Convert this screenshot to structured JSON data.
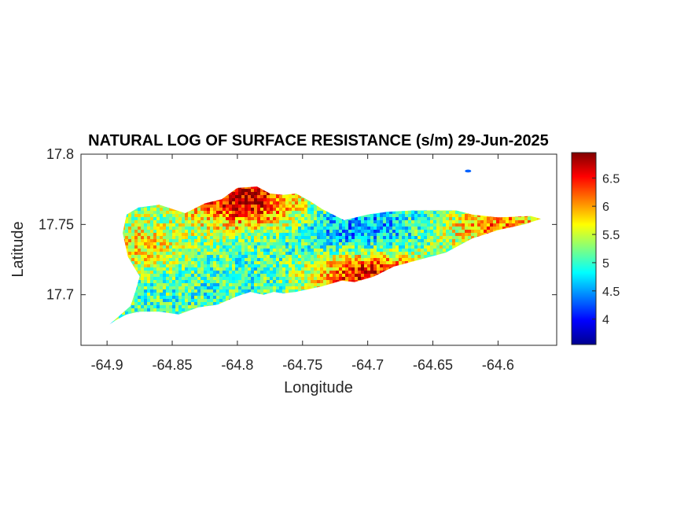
{
  "chart_data": {
    "type": "heatmap",
    "title": "NATURAL LOG OF SURFACE RESISTANCE (s/m) 29-Jun-2025",
    "xlabel": "Longitude",
    "ylabel": "Latitude",
    "xlim": [
      -64.92,
      -64.555
    ],
    "ylim": [
      17.664,
      17.8
    ],
    "x_ticks": [
      -64.9,
      -64.85,
      -64.8,
      -64.75,
      -64.7,
      -64.65,
      -64.6
    ],
    "x_tick_labels": [
      "-64.9",
      "-64.85",
      "-64.8",
      "-64.75",
      "-64.7",
      "-64.65",
      "-64.6"
    ],
    "y_ticks": [
      17.7,
      17.75,
      17.8
    ],
    "y_tick_labels": [
      "17.7",
      "17.75",
      "17.8"
    ],
    "colorbar": {
      "colormap": "jet",
      "range": [
        3.55,
        6.95
      ],
      "ticks": [
        4,
        4.5,
        5,
        5.5,
        6,
        6.5
      ],
      "tick_labels": [
        "4",
        "4.5",
        "5",
        "5.5",
        "6",
        "6.5"
      ]
    },
    "island_outline": [
      [
        -64.898,
        17.679
      ],
      [
        -64.882,
        17.692
      ],
      [
        -64.878,
        17.703
      ],
      [
        -64.875,
        17.713
      ],
      [
        -64.884,
        17.727
      ],
      [
        -64.888,
        17.744
      ],
      [
        -64.885,
        17.757
      ],
      [
        -64.876,
        17.762
      ],
      [
        -64.86,
        17.764
      ],
      [
        -64.84,
        17.758
      ],
      [
        -64.825,
        17.765
      ],
      [
        -64.812,
        17.768
      ],
      [
        -64.8,
        17.776
      ],
      [
        -64.785,
        17.777
      ],
      [
        -64.775,
        17.772
      ],
      [
        -64.765,
        17.771
      ],
      [
        -64.755,
        17.772
      ],
      [
        -64.745,
        17.767
      ],
      [
        -64.735,
        17.761
      ],
      [
        -64.718,
        17.753
      ],
      [
        -64.7,
        17.757
      ],
      [
        -64.685,
        17.759
      ],
      [
        -64.665,
        17.76
      ],
      [
        -64.648,
        17.76
      ],
      [
        -64.632,
        17.76
      ],
      [
        -64.62,
        17.757
      ],
      [
        -64.6,
        17.755
      ],
      [
        -64.575,
        17.756
      ],
      [
        -64.567,
        17.754
      ],
      [
        -64.58,
        17.75
      ],
      [
        -64.6,
        17.746
      ],
      [
        -64.62,
        17.74
      ],
      [
        -64.64,
        17.73
      ],
      [
        -64.66,
        17.725
      ],
      [
        -64.68,
        17.72
      ],
      [
        -64.695,
        17.713
      ],
      [
        -64.71,
        17.709
      ],
      [
        -64.72,
        17.71
      ],
      [
        -64.735,
        17.706
      ],
      [
        -64.755,
        17.702
      ],
      [
        -64.765,
        17.701
      ],
      [
        -64.772,
        17.702
      ],
      [
        -64.78,
        17.7
      ],
      [
        -64.79,
        17.702
      ],
      [
        -64.8,
        17.699
      ],
      [
        -64.815,
        17.693
      ],
      [
        -64.83,
        17.691
      ],
      [
        -64.845,
        17.686
      ],
      [
        -64.86,
        17.688
      ],
      [
        -64.875,
        17.688
      ],
      [
        -64.885,
        17.686
      ],
      [
        -64.893,
        17.682
      ]
    ],
    "islet": {
      "center": [
        -64.623,
        17.788
      ],
      "value": 4.3
    },
    "value_zones": [
      {
        "region": "south-east coast",
        "center": [
          -64.7,
          17.716
        ],
        "value": 6.85
      },
      {
        "region": "north-central peak",
        "center": [
          -64.795,
          17.768
        ],
        "value": 6.7
      },
      {
        "region": "east tip",
        "center": [
          -64.6,
          17.748
        ],
        "value": 6.1
      },
      {
        "region": "west coast",
        "center": [
          -64.878,
          17.735
        ],
        "value": 5.8
      },
      {
        "region": "north-east depression",
        "center": [
          -64.705,
          17.738
        ],
        "value": 4.1
      },
      {
        "region": "west interior",
        "center": [
          -64.855,
          17.735
        ],
        "value": 4.9
      }
    ]
  }
}
